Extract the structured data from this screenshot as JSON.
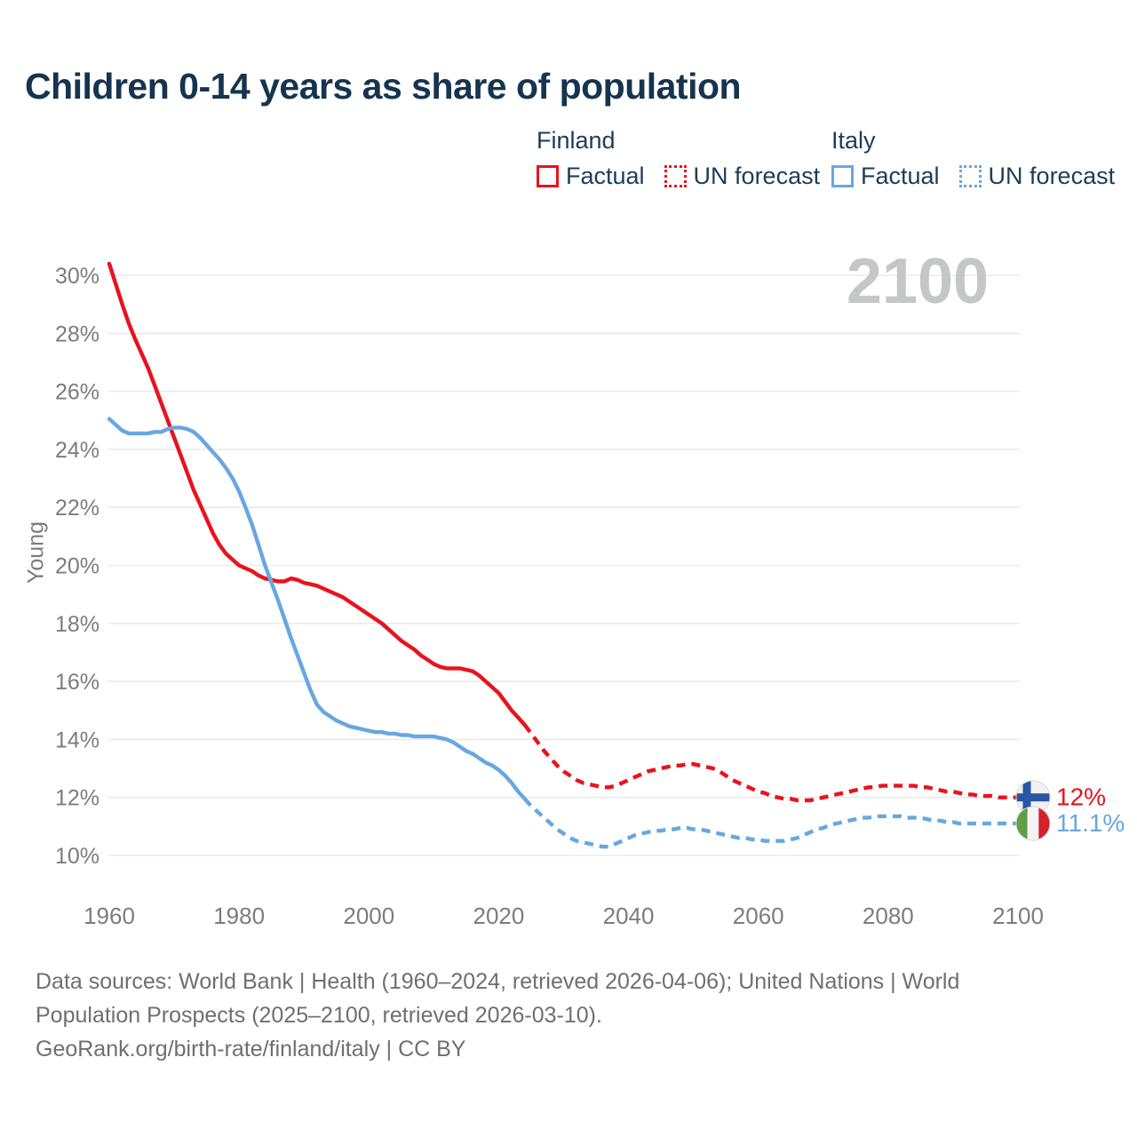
{
  "title": "Children 0-14 years as share of population",
  "watermark": "2100",
  "colors": {
    "finland": "#e8131d",
    "italy": "#68a7e0",
    "grid": "#ebebeb",
    "axis_text": "#7b7c7e",
    "title_text": "#16344f",
    "legend_text": "#1e3c59",
    "watermark_text": "#c5c6c8",
    "footer_text": "#6e6f71"
  },
  "legend": {
    "groups": [
      {
        "country": "Finland",
        "color": "#e8131d",
        "items": [
          {
            "label": "Factual",
            "style": "solid"
          },
          {
            "label": "UN forecast",
            "style": "dotted"
          }
        ]
      },
      {
        "country": "Italy",
        "color": "#68a7e0",
        "items": [
          {
            "label": "Factual",
            "style": "solid"
          },
          {
            "label": "UN forecast",
            "style": "dotted"
          }
        ]
      }
    ]
  },
  "end_labels": [
    {
      "flag": "finland",
      "label": "12%",
      "value": 12.0,
      "color": "#e8131d",
      "flag_colors": {
        "bg": "#f1f1f1",
        "cross": "#2d55a5",
        "ring": "#d9d9d9"
      }
    },
    {
      "flag": "italy",
      "label": "11.1%",
      "value": 11.1,
      "color": "#68a7e0",
      "flag_colors": {
        "left": "#5f9e46",
        "mid": "#f4f4f4",
        "right": "#d5212e",
        "ring": "#d9d9d9"
      }
    }
  ],
  "footer": {
    "lines": [
      "Data sources: World Bank | Health (1960–2024, retrieved 2026-04-06); United Nations | World",
      "Population Prospects (2025–2100, retrieved 2026-03-10).",
      "GeoRank.org/birth-rate/finland/italy | CC BY"
    ]
  },
  "chart_data": {
    "type": "line",
    "title": "Children 0-14 years as share of population",
    "xlabel": "",
    "ylabel": "Young",
    "xlim": [
      1960,
      2100
    ],
    "ylim": [
      10,
      30
    ],
    "grid": true,
    "legend_position": "top-right",
    "x_ticks": [
      1960,
      1980,
      2000,
      2020,
      2040,
      2060,
      2080,
      2100
    ],
    "y_ticks": [
      {
        "value": 30,
        "label": "30%"
      },
      {
        "value": 28,
        "label": "28%"
      },
      {
        "value": 26,
        "label": "26%"
      },
      {
        "value": 24,
        "label": "24%"
      },
      {
        "value": 22,
        "label": "22%"
      },
      {
        "value": 20,
        "label": "20%"
      },
      {
        "value": 18,
        "label": "18%"
      },
      {
        "value": 16,
        "label": "16%"
      },
      {
        "value": 14,
        "label": "14%"
      },
      {
        "value": 12,
        "label": "12%"
      },
      {
        "value": 10,
        "label": "10%"
      }
    ],
    "series": [
      {
        "name": "Finland Factual",
        "color": "#e8131d",
        "dash": "solid",
        "start_year": 1960,
        "values": [
          30.4,
          29.7,
          29.0,
          28.35,
          27.8,
          27.3,
          26.8,
          26.2,
          25.6,
          25.0,
          24.4,
          23.8,
          23.2,
          22.6,
          22.1,
          21.6,
          21.1,
          20.7,
          20.4,
          20.2,
          20.0,
          19.9,
          19.8,
          19.65,
          19.55,
          19.5,
          19.45,
          19.45,
          19.55,
          19.5,
          19.4,
          19.35,
          19.3,
          19.2,
          19.1,
          19.0,
          18.9,
          18.75,
          18.6,
          18.45,
          18.3,
          18.15,
          18.0,
          17.8,
          17.6,
          17.4,
          17.25,
          17.1,
          16.9,
          16.75,
          16.6,
          16.5,
          16.45,
          16.45,
          16.45,
          16.4,
          16.35,
          16.2,
          16.0,
          15.8,
          15.6,
          15.3,
          15.0,
          14.75,
          14.5
        ]
      },
      {
        "name": "Finland UN forecast",
        "color": "#e8131d",
        "dash": "dashed",
        "start_year": 2024,
        "values": [
          14.5,
          14.2,
          13.9,
          13.6,
          13.35,
          13.1,
          12.9,
          12.75,
          12.6,
          12.5,
          12.45,
          12.4,
          12.35,
          12.35,
          12.4,
          12.5,
          12.6,
          12.7,
          12.8,
          12.9,
          12.95,
          13.0,
          13.05,
          13.1,
          13.1,
          13.15,
          13.15,
          13.1,
          13.05,
          13.0,
          12.9,
          12.75,
          12.6,
          12.5,
          12.4,
          12.3,
          12.2,
          12.15,
          12.05,
          12.0,
          11.95,
          11.95,
          11.9,
          11.9,
          11.9,
          11.95,
          12.0,
          12.05,
          12.1,
          12.15,
          12.2,
          12.25,
          12.3,
          12.35,
          12.35,
          12.4,
          12.4,
          12.4,
          12.4,
          12.4,
          12.4,
          12.35,
          12.35,
          12.3,
          12.25,
          12.2,
          12.2,
          12.15,
          12.1,
          12.1,
          12.05,
          12.05,
          12.05,
          12.0,
          12.0,
          12.0,
          12.0
        ]
      },
      {
        "name": "Italy Factual",
        "color": "#68a7e0",
        "dash": "solid",
        "start_year": 1960,
        "values": [
          25.05,
          24.85,
          24.65,
          24.55,
          24.55,
          24.55,
          24.55,
          24.6,
          24.6,
          24.7,
          24.75,
          24.75,
          24.7,
          24.6,
          24.4,
          24.15,
          23.9,
          23.65,
          23.35,
          23.0,
          22.55,
          22.0,
          21.4,
          20.7,
          20.0,
          19.4,
          18.8,
          18.15,
          17.5,
          16.9,
          16.3,
          15.7,
          15.2,
          14.95,
          14.8,
          14.65,
          14.55,
          14.45,
          14.4,
          14.35,
          14.3,
          14.25,
          14.25,
          14.2,
          14.2,
          14.15,
          14.15,
          14.1,
          14.1,
          14.1,
          14.1,
          14.05,
          14.0,
          13.9,
          13.75,
          13.6,
          13.5,
          13.35,
          13.2,
          13.1,
          12.95,
          12.75,
          12.5,
          12.2,
          11.95
        ]
      },
      {
        "name": "Italy UN forecast",
        "color": "#68a7e0",
        "dash": "dashed",
        "start_year": 2024,
        "values": [
          11.95,
          11.7,
          11.5,
          11.3,
          11.1,
          10.9,
          10.75,
          10.6,
          10.5,
          10.45,
          10.4,
          10.35,
          10.3,
          10.3,
          10.4,
          10.5,
          10.6,
          10.7,
          10.75,
          10.8,
          10.85,
          10.85,
          10.9,
          10.9,
          10.95,
          10.95,
          10.9,
          10.9,
          10.85,
          10.8,
          10.75,
          10.7,
          10.65,
          10.6,
          10.6,
          10.55,
          10.55,
          10.5,
          10.5,
          10.5,
          10.5,
          10.55,
          10.6,
          10.7,
          10.8,
          10.9,
          10.95,
          11.05,
          11.1,
          11.15,
          11.2,
          11.25,
          11.3,
          11.3,
          11.35,
          11.35,
          11.35,
          11.35,
          11.35,
          11.3,
          11.3,
          11.3,
          11.25,
          11.2,
          11.2,
          11.15,
          11.15,
          11.1,
          11.1,
          11.1,
          11.1,
          11.1,
          11.1,
          11.1,
          11.1,
          11.1,
          11.1
        ]
      }
    ]
  }
}
